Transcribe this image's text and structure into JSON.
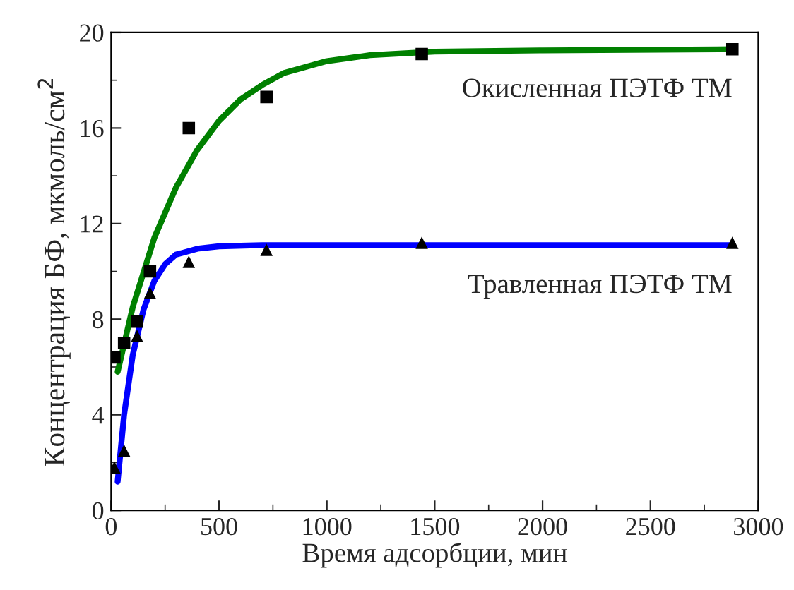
{
  "chart_data": {
    "type": "scatter",
    "xlabel": "Время адсорбции, мин",
    "ylabel": "Концентрация БФ, мкмоль/см$^{2}$",
    "xlim": [
      0,
      3000
    ],
    "xticks": [
      0,
      500,
      1000,
      1500,
      2000,
      2500,
      3000
    ],
    "ylim": [
      0,
      20
    ],
    "yticks": [
      0,
      4,
      8,
      12,
      16,
      20
    ],
    "grid": false,
    "legend": false,
    "series": [
      {
        "marker": "square",
        "color": "#000000",
        "x": [
          15,
          60,
          120,
          180,
          360,
          720,
          1440,
          2880
        ],
        "values": [
          6.4,
          7.0,
          7.9,
          10.0,
          16.0,
          17.3,
          19.1,
          19.3
        ]
      },
      {
        "marker": "triangle",
        "color": "#000000",
        "x": [
          15,
          60,
          120,
          180,
          360,
          720,
          1440,
          2880
        ],
        "values": [
          1.8,
          2.5,
          7.3,
          9.1,
          10.4,
          10.9,
          11.2,
          11.2
        ]
      },
      {
        "type": "line",
        "name": "Окисленная ПЭТФ ТМ",
        "color": "#008000",
        "x": [
          30,
          100,
          200,
          300,
          400,
          500,
          600,
          700,
          800,
          1000,
          1200,
          1500,
          2000,
          2880
        ],
        "values": [
          5.8,
          8.5,
          11.4,
          13.5,
          15.1,
          16.3,
          17.2,
          17.8,
          18.3,
          18.8,
          19.05,
          19.2,
          19.25,
          19.3
        ]
      },
      {
        "type": "line",
        "name": "Травленная ПЭТФ ТМ",
        "color": "#0000ff",
        "x": [
          30,
          60,
          100,
          150,
          200,
          250,
          300,
          400,
          500,
          700,
          2880
        ],
        "values": [
          1.2,
          4.0,
          6.5,
          8.4,
          9.6,
          10.3,
          10.7,
          10.95,
          11.05,
          11.1,
          11.1
        ]
      }
    ]
  }
}
